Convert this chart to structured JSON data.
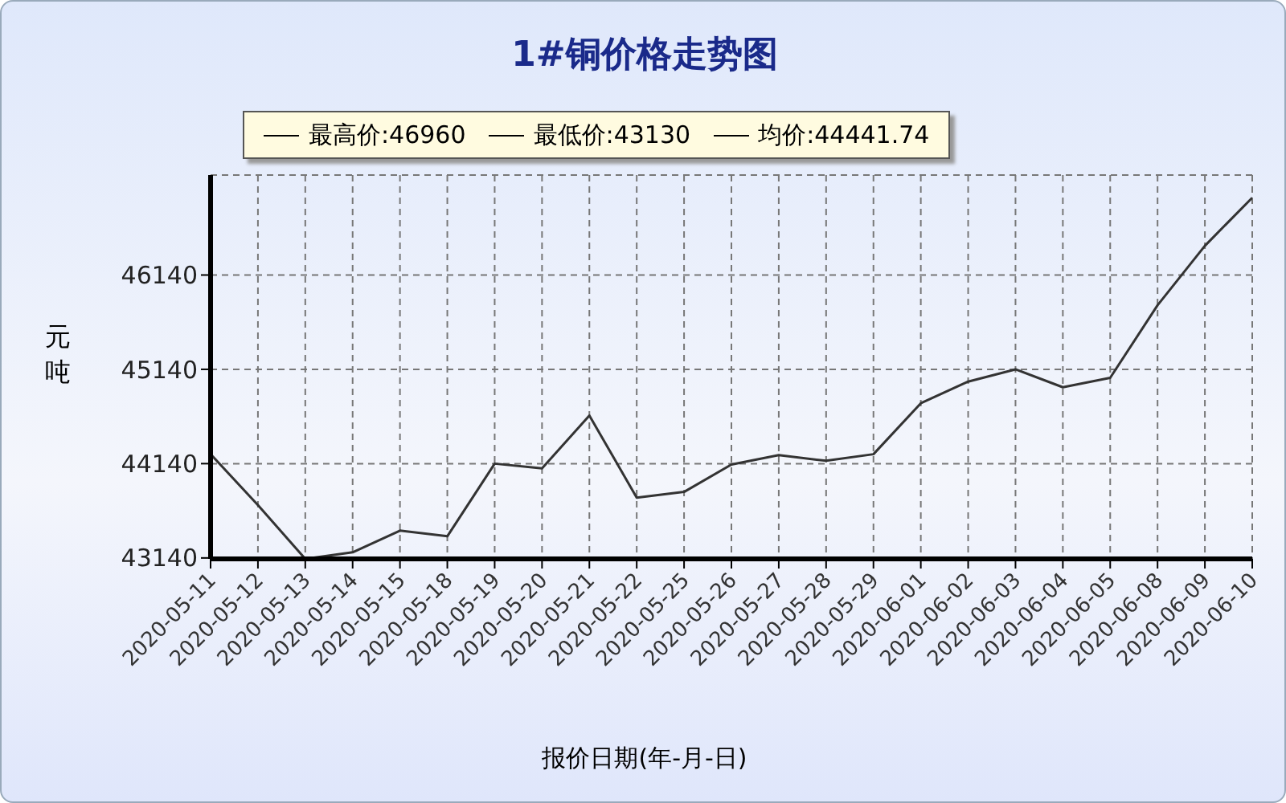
{
  "chart_data": {
    "type": "line",
    "title": "1#铜价格走势图",
    "xlabel": "报价日期(年-月-日)",
    "ylabel": "元吨",
    "annotations": [
      "最高价:46960",
      "最低价:43130",
      "均价:44441.74"
    ],
    "categories": [
      "2020-05-11",
      "2020-05-12",
      "2020-05-13",
      "2020-05-14",
      "2020-05-15",
      "2020-05-18",
      "2020-05-19",
      "2020-05-20",
      "2020-05-21",
      "2020-05-22",
      "2020-05-25",
      "2020-05-26",
      "2020-05-27",
      "2020-05-28",
      "2020-05-29",
      "2020-06-01",
      "2020-06-02",
      "2020-06-03",
      "2020-06-04",
      "2020-06-05",
      "2020-06-08",
      "2020-06-09",
      "2020-06-10"
    ],
    "series": [
      {
        "color": "#333333",
        "values": [
          44240,
          43700,
          43130,
          43200,
          43430,
          43370,
          44140,
          44090,
          44650,
          43780,
          43840,
          44130,
          44230,
          44170,
          44240,
          44780,
          45010,
          45140,
          44950,
          45050,
          45820,
          46450,
          46960
        ]
      }
    ],
    "ylim": [
      43130,
      47200
    ],
    "yticks": [
      43140,
      44140,
      45140,
      46140
    ],
    "grid": true,
    "marker": "none",
    "line_style": "solid"
  }
}
